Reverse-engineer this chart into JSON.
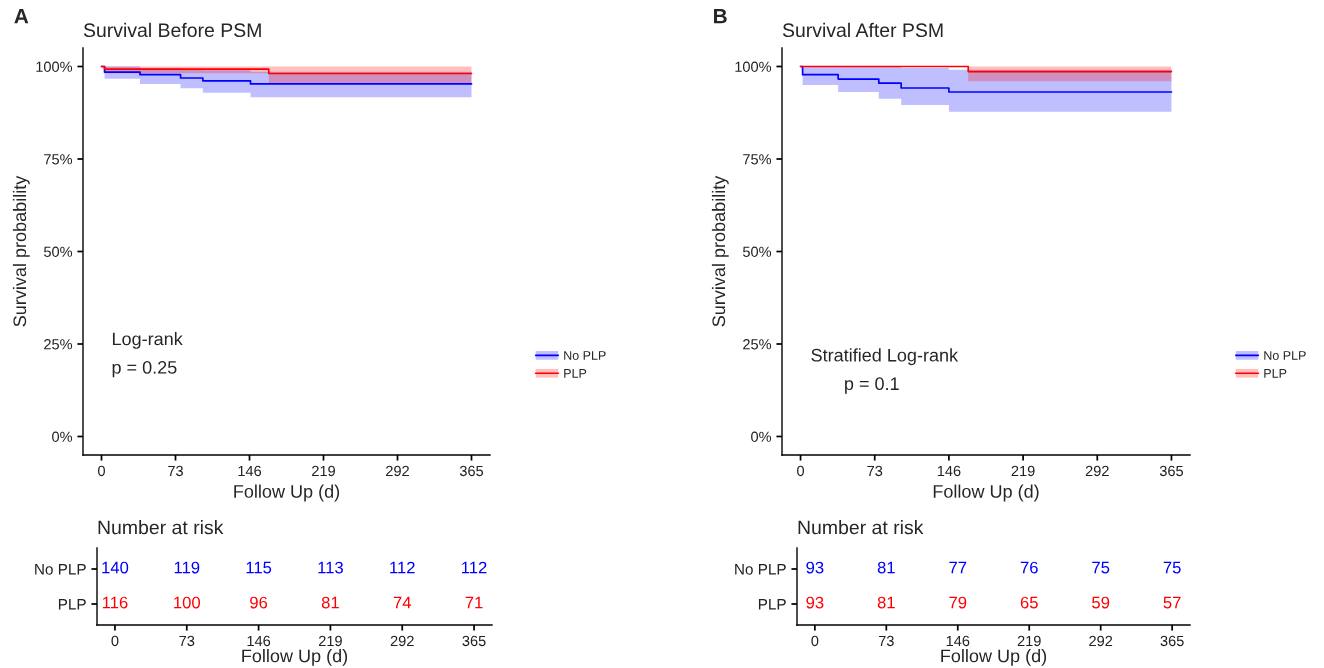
{
  "chart_data": [
    {
      "type": "step",
      "title": "Survival Before PSM",
      "xlabel": "Follow Up (d)",
      "ylabel": "Survival probability",
      "annotations": [
        "A",
        "Log-rank",
        "p = 0.25"
      ],
      "xlim": [
        -18.25,
        383.25
      ],
      "xticks": [
        0,
        73,
        146,
        219,
        292,
        365
      ],
      "ylim": [
        -5,
        105
      ],
      "yticks": [
        {
          "value": 0,
          "label": "0%"
        },
        {
          "value": 25,
          "label": "25%"
        },
        {
          "value": 50,
          "label": "50%"
        },
        {
          "value": 75,
          "label": "75%"
        },
        {
          "value": 100,
          "label": "100%"
        }
      ],
      "legend": "right",
      "grid": false,
      "series": [
        {
          "name": "No PLP",
          "color": "#0000ff",
          "x": [
            0,
            3,
            38,
            78,
            100,
            147,
            365
          ],
          "values": [
            100,
            98.5,
            97.8,
            96.9,
            96.1,
            95.3,
            95.3
          ],
          "lower": [
            100,
            96.7,
            95.3,
            94.1,
            92.9,
            91.7,
            91.7
          ],
          "upper": [
            100,
            100,
            99.6,
            99.3,
            99.0,
            98.6,
            98.6
          ]
        },
        {
          "name": "PLP",
          "color": "#ff0000",
          "x": [
            0,
            3,
            165,
            365
          ],
          "values": [
            100,
            99.3,
            98.1,
            98.1
          ],
          "lower": [
            100,
            98.2,
            95.5,
            95.5
          ],
          "upper": [
            100,
            100,
            100,
            100
          ]
        }
      ]
    },
    {
      "type": "step",
      "title": "Survival After PSM",
      "xlabel": "Follow Up (d)",
      "ylabel": "Survival probability",
      "annotations": [
        "B",
        "Stratified Log-rank",
        "p = 0.1"
      ],
      "xlim": [
        -18.25,
        383.25
      ],
      "xticks": [
        0,
        73,
        146,
        219,
        292,
        365
      ],
      "ylim": [
        -5,
        105
      ],
      "yticks": [
        {
          "value": 0,
          "label": "0%"
        },
        {
          "value": 25,
          "label": "25%"
        },
        {
          "value": 50,
          "label": "50%"
        },
        {
          "value": 75,
          "label": "75%"
        },
        {
          "value": 100,
          "label": "100%"
        }
      ],
      "legend": "right",
      "grid": false,
      "series": [
        {
          "name": "No PLP",
          "color": "#0000ff",
          "x": [
            0,
            2,
            37,
            77,
            99,
            146,
            365
          ],
          "values": [
            100,
            97.8,
            96.6,
            95.5,
            94.2,
            93.1,
            93.1
          ],
          "lower": [
            100,
            95.0,
            93.1,
            91.3,
            89.6,
            87.8,
            87.8
          ],
          "upper": [
            100,
            100,
            100,
            100,
            99.6,
            99.1,
            99.1
          ]
        },
        {
          "name": "PLP",
          "color": "#ff0000",
          "x": [
            0,
            165,
            365
          ],
          "values": [
            100,
            98.6,
            98.6
          ],
          "lower": [
            100,
            96.0,
            96.0
          ],
          "upper": [
            100,
            100,
            100
          ]
        }
      ]
    },
    {
      "type": "heatmap",
      "title": "Number at risk",
      "xlabel": "Follow Up (d)",
      "categories": [
        "0",
        "73",
        "146",
        "219",
        "292",
        "365"
      ],
      "y_categories": [
        "No PLP",
        "PLP"
      ],
      "colors": [
        "#0000ff",
        "#ff0000"
      ],
      "data_labels": true,
      "cells": [
        [
          140,
          119,
          115,
          113,
          112,
          112
        ],
        [
          116,
          100,
          96,
          81,
          74,
          71
        ]
      ]
    },
    {
      "type": "heatmap",
      "title": "Number at risk",
      "xlabel": "Follow Up (d)",
      "categories": [
        "0",
        "73",
        "146",
        "219",
        "292",
        "365"
      ],
      "y_categories": [
        "No PLP",
        "PLP"
      ],
      "colors": [
        "#0000ff",
        "#ff0000"
      ],
      "data_labels": true,
      "cells": [
        [
          93,
          81,
          77,
          76,
          75,
          75
        ],
        [
          93,
          81,
          79,
          65,
          59,
          57
        ]
      ]
    }
  ]
}
